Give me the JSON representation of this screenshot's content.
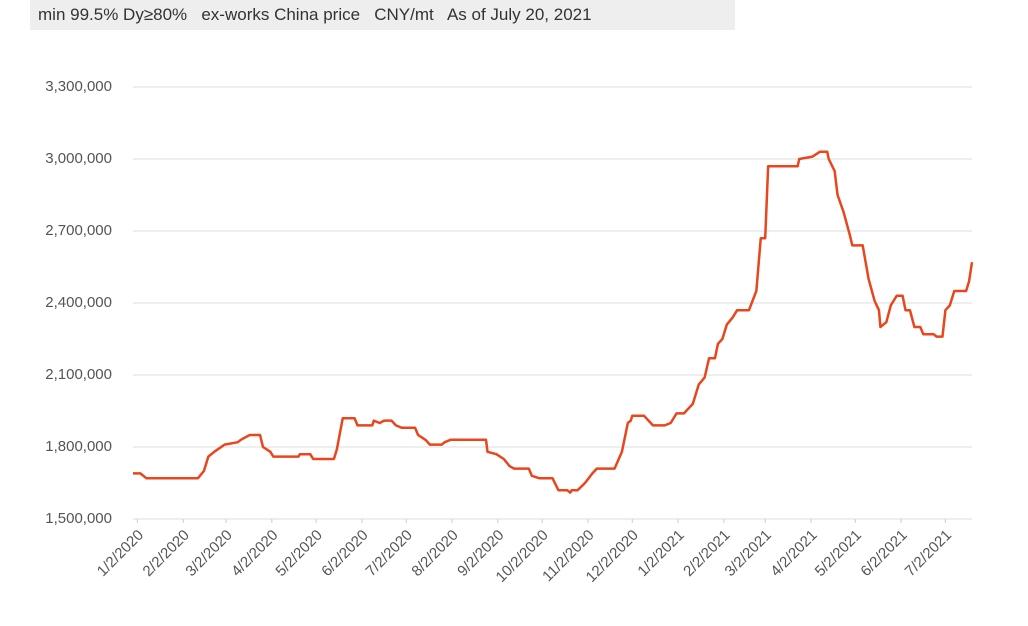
{
  "chart_data": {
    "type": "line",
    "title": "min 99.5% Dy≥80%   ex-works China price   CNY/mt   As of July 20, 2021",
    "ylim": [
      1500000,
      3300000
    ],
    "yticks": [
      {
        "value": 1500000,
        "label": "1,500,000"
      },
      {
        "value": 1800000,
        "label": "1,800,000"
      },
      {
        "value": 2100000,
        "label": "2,100,000"
      },
      {
        "value": 2400000,
        "label": "2,400,000"
      },
      {
        "value": 2700000,
        "label": "2,700,000"
      },
      {
        "value": 3000000,
        "label": "3,000,000"
      },
      {
        "value": 3300000,
        "label": "3,300,000"
      }
    ],
    "xlim": [
      "12/30/2019",
      "7/20/2021"
    ],
    "xticks": [
      "1/2/2020",
      "2/2/2020",
      "3/2/2020",
      "4/2/2020",
      "5/2/2020",
      "6/2/2020",
      "7/2/2020",
      "8/2/2020",
      "9/2/2020",
      "10/2/2020",
      "11/2/2020",
      "12/2/2020",
      "1/2/2021",
      "2/2/2021",
      "3/2/2021",
      "4/2/2021",
      "5/2/2021",
      "6/2/2021",
      "7/2/2021"
    ],
    "grid": true,
    "series": [
      {
        "name": "Dy price",
        "color": "#e8461c",
        "x": [
          "12/30/2019",
          "1/4/2020",
          "1/8/2020",
          "2/12/2020",
          "2/16/2020",
          "2/19/2020",
          "2/23/2020",
          "3/1/2020",
          "3/10/2020",
          "3/12/2020",
          "3/18/2020",
          "3/25/2020",
          "3/27/2020",
          "4/1/2020",
          "4/3/2020",
          "4/20/2020",
          "4/21/2020",
          "4/28/2020",
          "4/30/2020",
          "5/14/2020",
          "5/16/2020",
          "5/20/2020",
          "5/28/2020",
          "5/30/2020",
          "6/9/2020",
          "6/10/2020",
          "6/14/2020",
          "6/17/2020",
          "6/22/2020",
          "6/25/2020",
          "6/29/2020",
          "7/8/2020",
          "7/10/2020",
          "7/15/2020",
          "7/18/2020",
          "7/26/2020",
          "7/28/2020",
          "8/1/2020",
          "8/25/2020",
          "8/26/2020",
          "9/1/2020",
          "9/6/2020",
          "9/10/2020",
          "9/13/2020",
          "9/23/2020",
          "9/25/2020",
          "9/30/2020",
          "10/9/2020",
          "10/13/2020",
          "10/19/2020",
          "10/21/2020",
          "10/22/2020",
          "10/26/2020",
          "10/31/2020",
          "11/5/2020",
          "11/8/2020",
          "11/20/2020",
          "11/25/2020",
          "11/29/2020",
          "12/1/2020",
          "12/2/2020",
          "12/10/2020",
          "12/16/2020",
          "12/24/2020",
          "12/28/2020",
          "1/1/2021",
          "1/6/2021",
          "1/12/2021",
          "1/16/2021",
          "1/20/2021",
          "1/23/2021",
          "1/27/2021",
          "1/29/2021",
          "2/1/2021",
          "2/4/2021",
          "2/8/2021",
          "2/11/2021",
          "2/19/2021",
          "2/24/2021",
          "2/27/2021",
          "3/2/2021",
          "3/4/2021",
          "3/24/2021",
          "3/25/2021",
          "4/3/2021",
          "4/8/2021",
          "4/13/2021",
          "4/14/2021",
          "4/18/2021",
          "4/20/2021",
          "4/24/2021",
          "4/28/2021",
          "4/30/2021",
          "5/7/2021",
          "5/11/2021",
          "5/15/2021",
          "5/18/2021",
          "5/19/2021",
          "5/23/2021",
          "5/26/2021",
          "5/30/2021",
          "6/3/2021",
          "6/5/2021",
          "6/8/2021",
          "6/11/2021",
          "6/15/2021",
          "6/17/2021",
          "6/24/2021",
          "6/26/2021",
          "6/30/2021",
          "7/2/2021",
          "7/5/2021",
          "7/8/2021",
          "7/16/2021",
          "7/18/2021",
          "7/20/2021"
        ],
        "values": [
          1690000,
          1690000,
          1670000,
          1670000,
          1700000,
          1760000,
          1780000,
          1810000,
          1820000,
          1830000,
          1850000,
          1850000,
          1800000,
          1780000,
          1760000,
          1760000,
          1770000,
          1770000,
          1750000,
          1750000,
          1790000,
          1920000,
          1920000,
          1890000,
          1890000,
          1910000,
          1900000,
          1910000,
          1910000,
          1890000,
          1880000,
          1880000,
          1850000,
          1830000,
          1810000,
          1810000,
          1820000,
          1830000,
          1830000,
          1780000,
          1770000,
          1750000,
          1720000,
          1710000,
          1710000,
          1680000,
          1670000,
          1670000,
          1620000,
          1620000,
          1610000,
          1620000,
          1620000,
          1650000,
          1690000,
          1710000,
          1710000,
          1780000,
          1900000,
          1910000,
          1930000,
          1930000,
          1890000,
          1890000,
          1900000,
          1940000,
          1940000,
          1980000,
          2060000,
          2090000,
          2170000,
          2170000,
          2230000,
          2250000,
          2310000,
          2340000,
          2370000,
          2370000,
          2450000,
          2670000,
          2670000,
          2970000,
          2970000,
          3000000,
          3010000,
          3030000,
          3030000,
          3000000,
          2950000,
          2850000,
          2780000,
          2690000,
          2640000,
          2640000,
          2500000,
          2410000,
          2370000,
          2300000,
          2320000,
          2390000,
          2430000,
          2430000,
          2370000,
          2370000,
          2300000,
          2300000,
          2270000,
          2270000,
          2260000,
          2260000,
          2370000,
          2390000,
          2450000,
          2450000,
          2490000,
          2570000
        ]
      }
    ]
  }
}
